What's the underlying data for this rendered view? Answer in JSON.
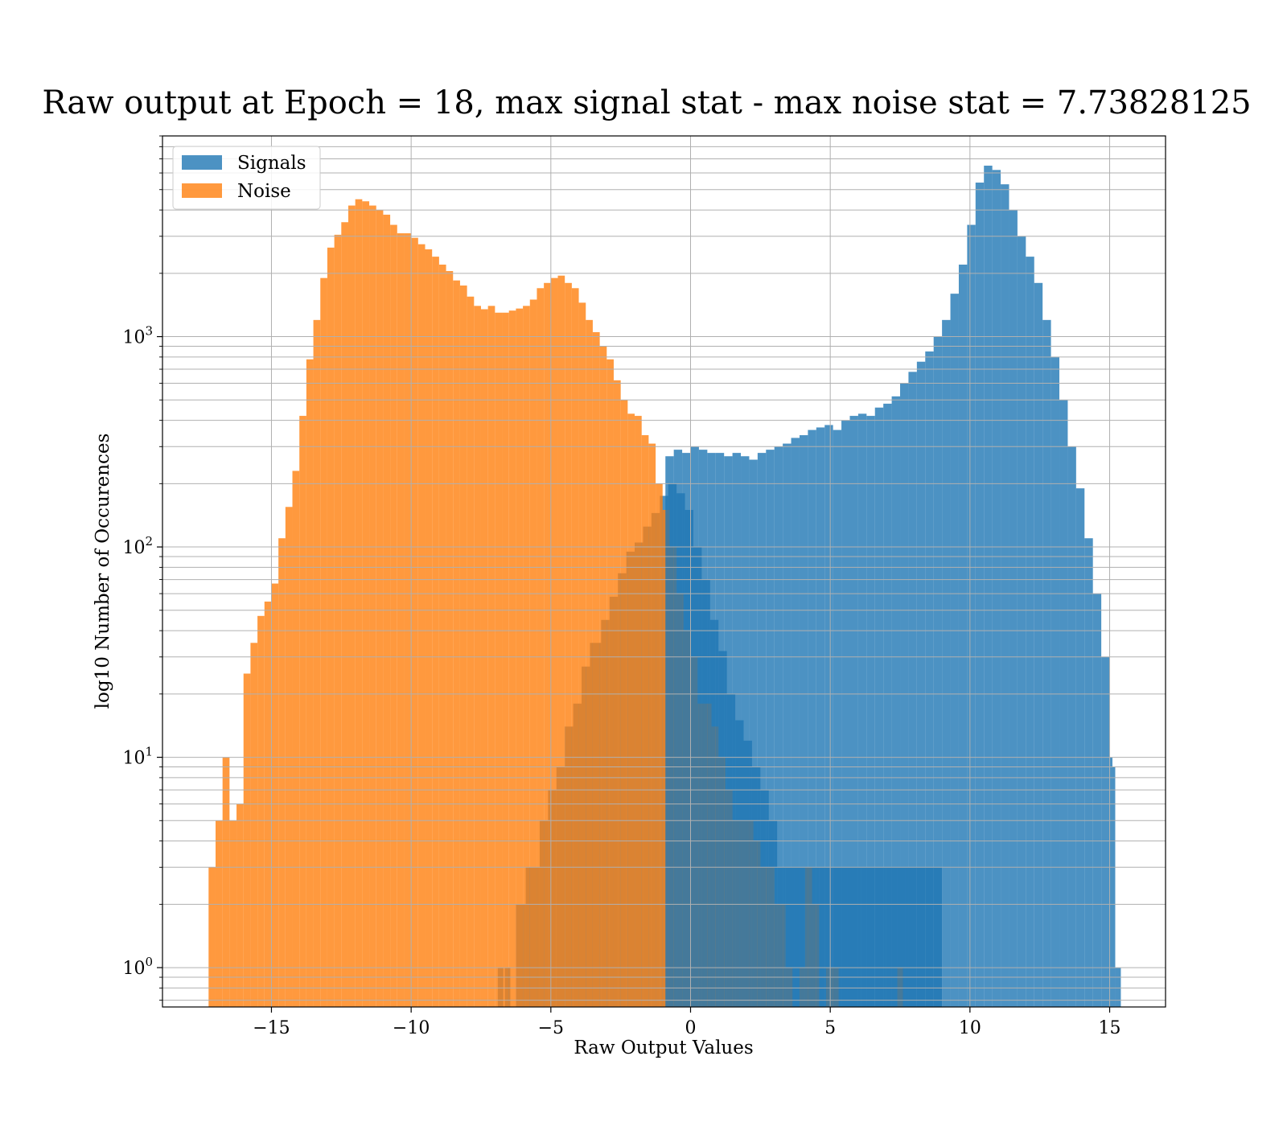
{
  "chart_data": {
    "type": "bar",
    "title": "Raw output at Epoch = 18, max signal stat - max noise stat = 7.73828125",
    "xlabel": "Raw Output Values",
    "ylabel": "log10 Number of Occurences",
    "xlim": [
      -18.9,
      17.0
    ],
    "ylim": [
      0.65,
      9000
    ],
    "yscale": "log",
    "grid": true,
    "legend_position": "top-left",
    "x_ticks": [
      -15,
      -10,
      -5,
      0,
      5,
      10,
      15
    ],
    "x_tick_labels": [
      "−15",
      "−10",
      "−5",
      "0",
      "5",
      "10",
      "15"
    ],
    "y_ticks": [
      {
        "value": 1,
        "base": "10",
        "exp": "0"
      },
      {
        "value": 10,
        "base": "10",
        "exp": "1"
      },
      {
        "value": 100,
        "base": "10",
        "exp": "2"
      },
      {
        "value": 1000,
        "base": "10",
        "exp": "3"
      }
    ],
    "series": [
      {
        "name": "Signals",
        "color": "#1f77b4",
        "opacity": 0.8,
        "bins": [
          [
            -6.9,
            -6.7,
            1
          ],
          [
            -6.65,
            -6.45,
            1
          ],
          [
            -6.25,
            -5.9,
            2
          ],
          [
            -5.9,
            -5.4,
            3
          ],
          [
            -5.4,
            -5.1,
            5
          ],
          [
            -5.1,
            -4.8,
            7
          ],
          [
            -4.8,
            -4.5,
            9
          ],
          [
            -4.5,
            -4.2,
            14
          ],
          [
            -4.2,
            -3.9,
            18
          ],
          [
            -3.9,
            -3.6,
            27
          ],
          [
            -3.6,
            -3.2,
            35
          ],
          [
            -3.2,
            -2.9,
            45
          ],
          [
            -2.9,
            -2.6,
            58
          ],
          [
            -2.6,
            -2.3,
            75
          ],
          [
            -2.3,
            -2.0,
            95
          ],
          [
            -2.0,
            -1.7,
            105
          ],
          [
            -1.7,
            -1.4,
            125
          ],
          [
            -1.4,
            -1.1,
            145
          ],
          [
            -1.1,
            -0.8,
            175
          ],
          [
            -0.8,
            -0.5,
            200
          ],
          [
            -0.5,
            -0.2,
            180
          ],
          [
            -0.2,
            0.1,
            150
          ],
          [
            0.1,
            0.4,
            100
          ],
          [
            0.4,
            0.7,
            70
          ],
          [
            0.7,
            1.0,
            45
          ],
          [
            1.0,
            1.3,
            32
          ],
          [
            1.3,
            1.6,
            20
          ],
          [
            1.6,
            1.9,
            15
          ],
          [
            1.9,
            2.2,
            12
          ],
          [
            2.2,
            2.5,
            9
          ],
          [
            2.5,
            2.8,
            7
          ],
          [
            2.8,
            3.1,
            5
          ],
          [
            3.1,
            3.4,
            3
          ],
          [
            3.4,
            3.7,
            3
          ],
          [
            3.7,
            4.1,
            3
          ],
          [
            4.1,
            4.6,
            3
          ],
          [
            4.6,
            5.1,
            3
          ],
          [
            5.1,
            5.6,
            3
          ],
          [
            5.6,
            6.1,
            3
          ],
          [
            6.1,
            6.6,
            3
          ],
          [
            6.6,
            7.0,
            3
          ],
          [
            7.0,
            7.4,
            3
          ],
          [
            7.4,
            7.7,
            3
          ],
          [
            7.7,
            8.1,
            3
          ],
          [
            8.1,
            8.4,
            3
          ],
          [
            8.4,
            8.7,
            3
          ],
          [
            8.7,
            9.0,
            3
          ]
        ]
      },
      {
        "name": "Noise",
        "color": "#ff7f0e",
        "opacity": 0.8,
        "bins": [
          [
            -17.25,
            -17.0,
            3
          ],
          [
            -17.0,
            -16.75,
            5
          ],
          [
            -16.75,
            -16.5,
            10
          ],
          [
            -16.5,
            -16.25,
            5
          ],
          [
            -16.25,
            -16.0,
            6
          ],
          [
            -16.0,
            -15.75,
            25
          ],
          [
            -15.75,
            -15.5,
            35
          ],
          [
            -15.5,
            -15.25,
            47
          ],
          [
            -15.25,
            -15.0,
            55
          ],
          [
            -15.0,
            -14.75,
            67
          ],
          [
            -14.75,
            -14.5,
            110
          ],
          [
            -14.5,
            -14.25,
            155
          ],
          [
            -14.25,
            -14.0,
            230
          ],
          [
            -14.0,
            -13.75,
            420
          ],
          [
            -13.75,
            -13.5,
            780
          ],
          [
            -13.5,
            -13.25,
            1200
          ],
          [
            -13.25,
            -13.0,
            1900
          ],
          [
            -13.0,
            -12.75,
            2650
          ],
          [
            -12.75,
            -12.5,
            3050
          ],
          [
            -12.5,
            -12.25,
            3500
          ],
          [
            -12.25,
            -12.0,
            4200
          ],
          [
            -12.0,
            -11.75,
            4500
          ],
          [
            -11.75,
            -11.5,
            4400
          ],
          [
            -11.5,
            -11.25,
            4200
          ],
          [
            -11.25,
            -11.0,
            4000
          ],
          [
            -11.0,
            -10.75,
            3800
          ],
          [
            -10.75,
            -10.5,
            3400
          ],
          [
            -10.5,
            -10.25,
            3100
          ],
          [
            -10.25,
            -10.0,
            3100
          ],
          [
            -10.0,
            -9.75,
            2950
          ],
          [
            -9.75,
            -9.5,
            2750
          ],
          [
            -9.5,
            -9.25,
            2600
          ],
          [
            -9.25,
            -9.0,
            2400
          ],
          [
            -9.0,
            -8.75,
            2200
          ],
          [
            -8.75,
            -8.5,
            2050
          ],
          [
            -8.5,
            -8.25,
            1850
          ],
          [
            -8.25,
            -8.0,
            1750
          ],
          [
            -8.0,
            -7.75,
            1550
          ],
          [
            -7.75,
            -7.5,
            1400
          ],
          [
            -7.5,
            -7.25,
            1350
          ],
          [
            -7.25,
            -7.0,
            1400
          ],
          [
            -7.0,
            -6.75,
            1300
          ],
          [
            -6.75,
            -6.5,
            1300
          ],
          [
            -6.5,
            -6.25,
            1330
          ],
          [
            -6.25,
            -6.0,
            1360
          ],
          [
            -6.0,
            -5.75,
            1400
          ],
          [
            -5.75,
            -5.5,
            1500
          ],
          [
            -5.5,
            -5.25,
            1700
          ],
          [
            -5.25,
            -5.0,
            1800
          ],
          [
            -5.0,
            -4.75,
            1900
          ],
          [
            -4.75,
            -4.5,
            1950
          ],
          [
            -4.5,
            -4.25,
            1800
          ],
          [
            -4.25,
            -4.0,
            1700
          ],
          [
            -4.0,
            -3.75,
            1450
          ],
          [
            -3.75,
            -3.5,
            1200
          ],
          [
            -3.5,
            -3.25,
            1050
          ],
          [
            -3.25,
            -3.0,
            900
          ],
          [
            -3.0,
            -2.75,
            780
          ],
          [
            -2.75,
            -2.5,
            620
          ],
          [
            -2.5,
            -2.25,
            500
          ],
          [
            -2.25,
            -2.0,
            430
          ],
          [
            -2.0,
            -1.75,
            420
          ],
          [
            -1.75,
            -1.5,
            340
          ],
          [
            -1.5,
            -1.25,
            310
          ],
          [
            -1.25,
            -1.0,
            200
          ],
          [
            -1.0,
            -0.75,
            150
          ],
          [
            -0.75,
            -0.5,
            100
          ],
          [
            -0.5,
            -0.25,
            60
          ],
          [
            -0.25,
            0.0,
            40
          ],
          [
            0.0,
            0.25,
            30
          ],
          [
            0.25,
            0.5,
            18
          ],
          [
            0.5,
            0.75,
            18
          ],
          [
            0.75,
            1.0,
            14
          ],
          [
            1.0,
            1.25,
            10
          ],
          [
            1.25,
            1.5,
            7
          ],
          [
            1.5,
            1.75,
            5
          ],
          [
            1.75,
            2.0,
            5
          ],
          [
            2.0,
            2.25,
            5
          ],
          [
            2.25,
            2.5,
            4
          ],
          [
            2.5,
            2.75,
            3
          ],
          [
            2.75,
            3.0,
            3
          ],
          [
            3.0,
            3.4,
            2
          ],
          [
            3.4,
            3.65,
            1
          ],
          [
            3.9,
            4.1,
            1
          ],
          [
            4.1,
            4.35,
            3
          ],
          [
            4.35,
            4.6,
            2
          ],
          [
            4.85,
            5.3,
            1
          ],
          [
            7.4,
            7.6,
            1
          ]
        ]
      },
      {
        "name": "Signals",
        "color": "#1f77b4",
        "opacity": 0.8,
        "bins": [
          [
            -0.9,
            -0.6,
            270
          ],
          [
            -0.6,
            -0.3,
            290
          ],
          [
            -0.3,
            0.0,
            280
          ],
          [
            0.0,
            0.3,
            300
          ],
          [
            0.3,
            0.6,
            290
          ],
          [
            0.6,
            0.9,
            280
          ],
          [
            0.9,
            1.2,
            280
          ],
          [
            1.2,
            1.5,
            270
          ],
          [
            1.5,
            1.8,
            280
          ],
          [
            1.8,
            2.1,
            270
          ],
          [
            2.1,
            2.4,
            260
          ],
          [
            2.4,
            2.7,
            280
          ],
          [
            2.7,
            3.0,
            290
          ],
          [
            3.0,
            3.3,
            300
          ],
          [
            3.3,
            3.6,
            310
          ],
          [
            3.6,
            3.9,
            330
          ],
          [
            3.9,
            4.2,
            340
          ],
          [
            4.2,
            4.5,
            360
          ],
          [
            4.5,
            4.8,
            370
          ],
          [
            4.8,
            5.1,
            380
          ],
          [
            5.1,
            5.4,
            360
          ],
          [
            5.4,
            5.7,
            400
          ],
          [
            5.7,
            6.0,
            420
          ],
          [
            6.0,
            6.3,
            430
          ],
          [
            6.3,
            6.6,
            420
          ],
          [
            6.6,
            6.9,
            460
          ],
          [
            6.9,
            7.2,
            480
          ],
          [
            7.2,
            7.5,
            520
          ],
          [
            7.5,
            7.8,
            600
          ],
          [
            7.8,
            8.1,
            680
          ],
          [
            8.1,
            8.4,
            760
          ],
          [
            8.4,
            8.7,
            850
          ],
          [
            8.7,
            9.0,
            1000
          ],
          [
            9.0,
            9.3,
            1200
          ],
          [
            9.3,
            9.6,
            1600
          ],
          [
            9.6,
            9.9,
            2200
          ],
          [
            9.9,
            10.2,
            3400
          ],
          [
            10.2,
            10.5,
            5400
          ],
          [
            10.5,
            10.8,
            6500
          ],
          [
            10.8,
            11.1,
            6200
          ],
          [
            11.1,
            11.4,
            5300
          ],
          [
            11.4,
            11.7,
            4000
          ],
          [
            11.7,
            12.0,
            3000
          ],
          [
            12.0,
            12.3,
            2400
          ],
          [
            12.3,
            12.6,
            1800
          ],
          [
            12.6,
            12.9,
            1200
          ],
          [
            12.9,
            13.2,
            800
          ],
          [
            13.2,
            13.5,
            500
          ],
          [
            13.5,
            13.8,
            300
          ],
          [
            13.8,
            14.1,
            190
          ],
          [
            14.1,
            14.4,
            110
          ],
          [
            14.4,
            14.7,
            60
          ],
          [
            14.7,
            15.0,
            30
          ],
          [
            15.0,
            15.1,
            10
          ],
          [
            15.1,
            15.2,
            9
          ],
          [
            15.2,
            15.4,
            1
          ]
        ]
      }
    ]
  }
}
